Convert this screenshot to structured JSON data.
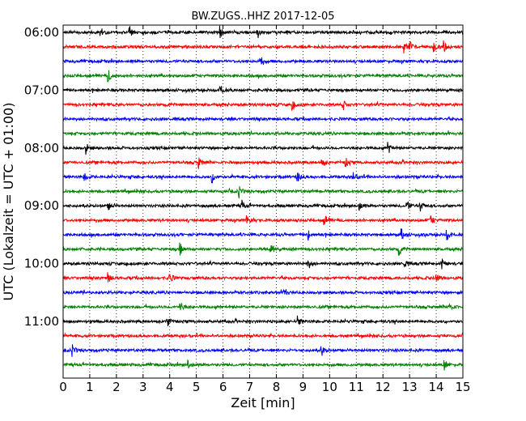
{
  "chart_data": {
    "type": "line",
    "title": "BW.ZUGS..HHZ 2017-12-05",
    "xlabel": "Zeit  [min]",
    "ylabel": "UTC (Lokalzeit = UTC + 01:00)",
    "xlim": [
      0,
      15
    ],
    "x_ticks": [
      "0",
      "1",
      "2",
      "3",
      "4",
      "5",
      "6",
      "7",
      "8",
      "9",
      "10",
      "11",
      "12",
      "13",
      "14",
      "15"
    ],
    "y_tick_labels": [
      "06:00",
      "07:00",
      "08:00",
      "09:00",
      "10:00",
      "11:00"
    ],
    "grid": "vertical dotted",
    "trace_colors": [
      "#000000",
      "#ff0000",
      "#0000ff",
      "#008000"
    ],
    "trace_count": 24,
    "trace_interval_min": 15,
    "events": [
      {
        "trace": 0,
        "t": [
          1.4,
          2.5,
          5.9,
          7.3
        ]
      },
      {
        "trace": 1,
        "t": [
          12.8,
          13.0,
          13.9,
          14.3
        ]
      },
      {
        "trace": 2,
        "t": [
          7.4
        ]
      },
      {
        "trace": 3,
        "t": [
          1.7
        ]
      },
      {
        "trace": 4,
        "t": [
          5.9
        ]
      },
      {
        "trace": 5,
        "t": [
          8.6,
          10.5
        ]
      },
      {
        "trace": 8,
        "t": [
          0.85,
          12.2
        ]
      },
      {
        "trace": 9,
        "t": [
          5.1,
          9.7,
          10.6
        ]
      },
      {
        "trace": 10,
        "t": [
          0.8,
          5.6,
          8.8,
          10.9
        ]
      },
      {
        "trace": 11,
        "t": [
          6.6
        ]
      },
      {
        "trace": 12,
        "t": [
          1.7,
          6.7,
          11.1,
          12.9,
          13.4
        ]
      },
      {
        "trace": 13,
        "t": [
          6.9,
          9.8,
          13.8
        ]
      },
      {
        "trace": 14,
        "t": [
          9.2,
          12.7,
          14.4
        ]
      },
      {
        "trace": 15,
        "t": [
          4.4,
          7.8,
          12.6
        ]
      },
      {
        "trace": 16,
        "t": [
          9.2,
          12.8,
          14.2
        ]
      },
      {
        "trace": 17,
        "t": [
          1.7,
          4.0,
          14.0
        ]
      },
      {
        "trace": 18,
        "t": [
          8.3
        ]
      },
      {
        "trace": 19,
        "t": [
          4.4,
          14.5
        ]
      },
      {
        "trace": 20,
        "t": [
          3.9,
          8.8
        ]
      },
      {
        "trace": 22,
        "t": [
          0.35,
          9.7
        ]
      },
      {
        "trace": 23,
        "t": [
          4.7,
          14.3
        ]
      }
    ]
  }
}
